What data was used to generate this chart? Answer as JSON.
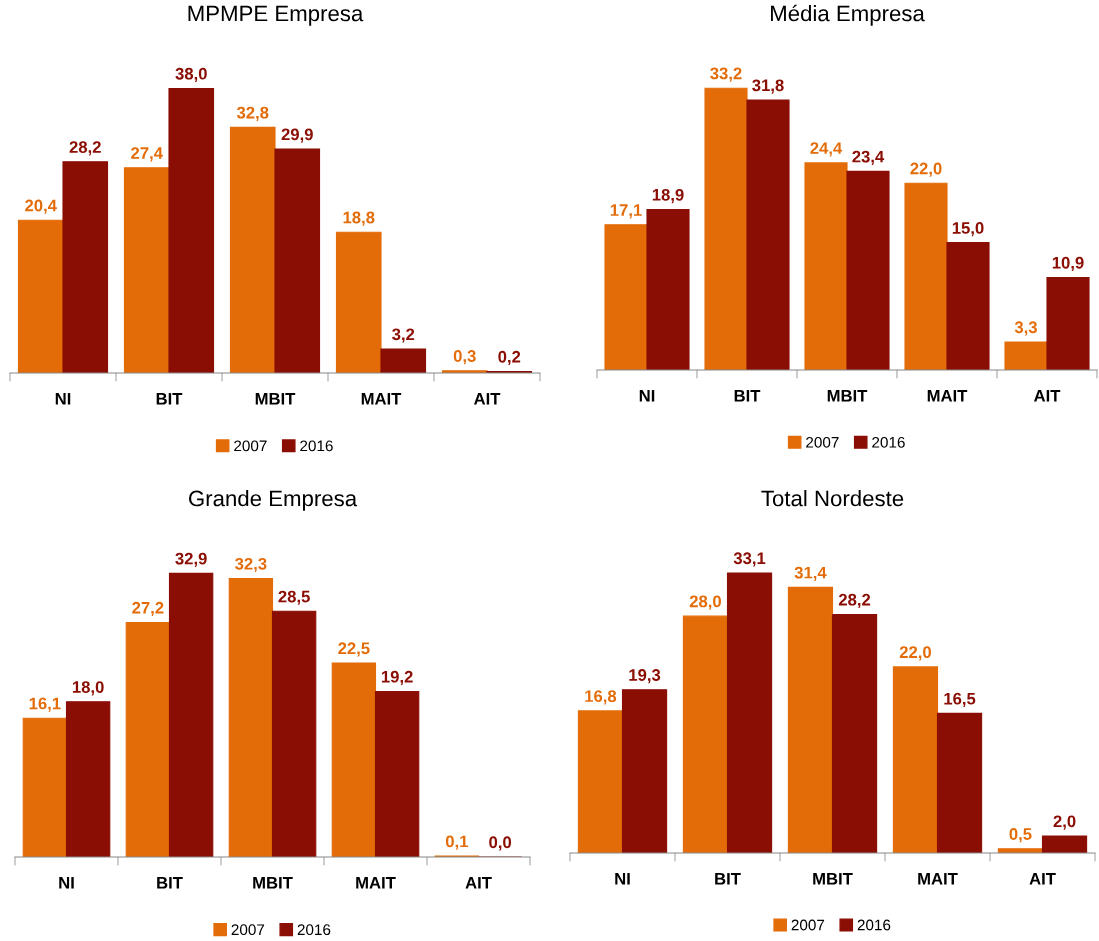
{
  "chart_data": [
    {
      "type": "bar",
      "title": "MPMPE Empresa",
      "categories": [
        "NI",
        "BIT",
        "MBIT",
        "MAIT",
        "AIT"
      ],
      "legend": "bottom",
      "grid": false,
      "series": [
        {
          "name": "2007",
          "color": "#e36c09",
          "values": [
            20.4,
            27.4,
            32.8,
            18.8,
            0.3
          ],
          "value_labels": [
            "20,4",
            "27,4",
            "32,8",
            "18,8",
            "0,3"
          ]
        },
        {
          "name": "2016",
          "color": "#8b0e04",
          "values": [
            28.2,
            38.0,
            29.9,
            3.2,
            0.2
          ],
          "value_labels": [
            "28,2",
            "38,0",
            "29,9",
            "3,2",
            "0,2"
          ]
        }
      ]
    },
    {
      "type": "bar",
      "title": "Média Empresa",
      "categories": [
        "NI",
        "BIT",
        "MBIT",
        "MAIT",
        "AIT"
      ],
      "legend": "bottom",
      "grid": false,
      "series": [
        {
          "name": "2007",
          "color": "#e36c09",
          "values": [
            17.1,
            33.2,
            24.4,
            22.0,
            3.3
          ],
          "value_labels": [
            "17,1",
            "33,2",
            "24,4",
            "22,0",
            "3,3"
          ]
        },
        {
          "name": "2016",
          "color": "#8b0e04",
          "values": [
            18.9,
            31.8,
            23.4,
            15.0,
            10.9
          ],
          "value_labels": [
            "18,9",
            "31,8",
            "23,4",
            "15,0",
            "10,9"
          ]
        }
      ]
    },
    {
      "type": "bar",
      "title": "Grande Empresa",
      "categories": [
        "NI",
        "BIT",
        "MBIT",
        "MAIT",
        "AIT"
      ],
      "legend": "bottom",
      "grid": false,
      "series": [
        {
          "name": "2007",
          "color": "#e36c09",
          "values": [
            16.1,
            27.2,
            32.3,
            22.5,
            0.1
          ],
          "value_labels": [
            "16,1",
            "27,2",
            "32,3",
            "22,5",
            "0,1"
          ]
        },
        {
          "name": "2016",
          "color": "#8b0e04",
          "values": [
            18.0,
            32.9,
            28.5,
            19.2,
            0.0
          ],
          "value_labels": [
            "18,0",
            "32,9",
            "28,5",
            "19,2",
            "0,0"
          ]
        }
      ]
    },
    {
      "type": "bar",
      "title": "Total Nordeste",
      "categories": [
        "NI",
        "BIT",
        "MBIT",
        "MAIT",
        "AIT"
      ],
      "legend": "bottom",
      "grid": false,
      "series": [
        {
          "name": "2007",
          "color": "#e36c09",
          "values": [
            16.8,
            28.0,
            31.4,
            22.0,
            0.5
          ],
          "value_labels": [
            "16,8",
            "28,0",
            "31,4",
            "22,0",
            "0,5"
          ]
        },
        {
          "name": "2016",
          "color": "#8b0e04",
          "values": [
            19.3,
            33.1,
            28.2,
            16.5,
            2.0
          ],
          "value_labels": [
            "19,3",
            "33,1",
            "28,2",
            "16,5",
            "2,0"
          ]
        }
      ]
    }
  ]
}
